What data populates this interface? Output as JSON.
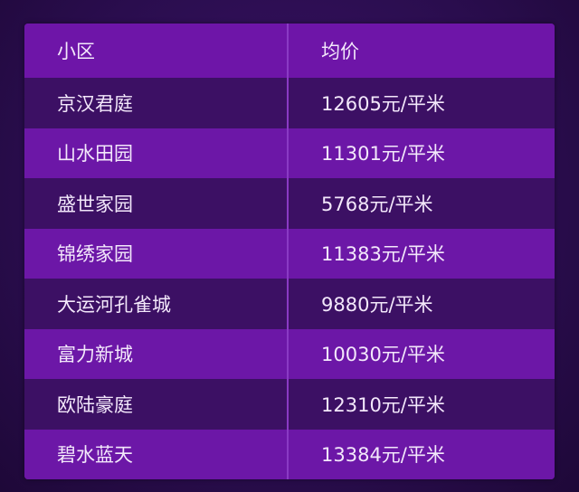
{
  "table": {
    "headers": [
      "小区",
      "均价"
    ],
    "rows": [
      {
        "name": "京汉君庭",
        "price": "12605元/平米"
      },
      {
        "name": "山水田园",
        "price": "11301元/平米"
      },
      {
        "name": "盛世家园",
        "price": "5768元/平米"
      },
      {
        "name": "锦绣家园",
        "price": "11383元/平米"
      },
      {
        "name": "大运河孔雀城",
        "price": "9880元/平米"
      },
      {
        "name": "富力新城",
        "price": "10030元/平米"
      },
      {
        "name": "欧陆豪庭",
        "price": "12310元/平米"
      },
      {
        "name": "碧水蓝天",
        "price": "13384元/平米"
      }
    ]
  },
  "colors": {
    "background": "#2a0d4e",
    "row_dark": "#3c1064",
    "row_light": "#6c17a7"
  }
}
